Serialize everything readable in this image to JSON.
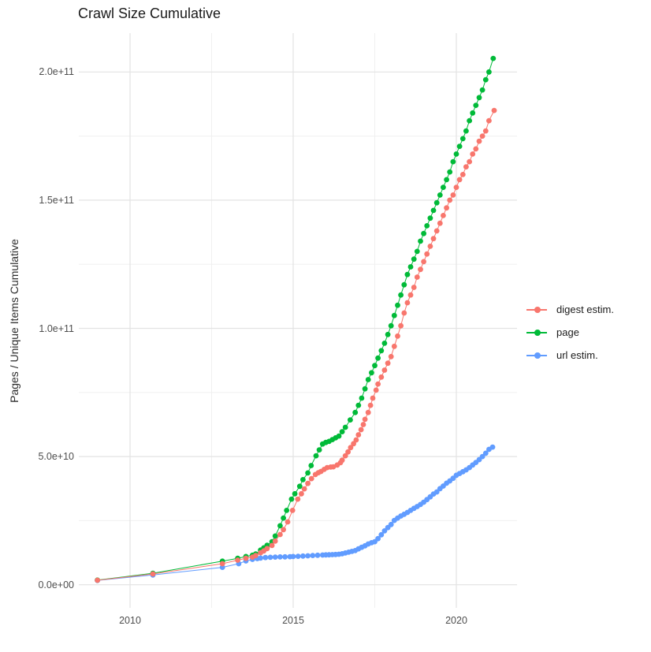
{
  "chart": {
    "title": "Crawl Size Cumulative",
    "ylabel": "Pages / Unique Items Cumulative",
    "xlabel": ""
  },
  "legend": {
    "position": "right",
    "items": [
      {
        "label": "digest estim.",
        "color": "#F8766D"
      },
      {
        "label": "page",
        "color": "#00BA38"
      },
      {
        "label": "url estim.",
        "color": "#619CFF"
      }
    ]
  },
  "chart_data": {
    "type": "scatter",
    "subtype": "line-with-points",
    "title": "Crawl Size Cumulative",
    "xlabel": "",
    "ylabel": "Pages / Unique Items Cumulative",
    "x_unit": "year (decimal)",
    "value_scale_note": "values below are in units of 1e9 pages / unique items",
    "xlim": [
      2008.4,
      2021.8
    ],
    "ylim_e9": [
      -9,
      215
    ],
    "grid": true,
    "legend_position": "right",
    "x_ticks": [
      {
        "value": 2010,
        "label": "2010"
      },
      {
        "value": 2015,
        "label": "2015"
      },
      {
        "value": 2020,
        "label": "2020"
      }
    ],
    "x_minor": [
      2012.5,
      2017.5
    ],
    "y_ticks": [
      {
        "value_e9": 0,
        "label": "0.0e+00"
      },
      {
        "value_e9": 50,
        "label": "5.0e+10"
      },
      {
        "value_e9": 100,
        "label": "1.0e+11"
      },
      {
        "value_e9": 150,
        "label": "1.5e+11"
      },
      {
        "value_e9": 200,
        "label": "2.0e+11"
      }
    ],
    "y_minor_e9": [
      25,
      75,
      125,
      175
    ],
    "draw_order": [
      2,
      1,
      0
    ],
    "series": [
      {
        "name": "digest estim.",
        "color": "#F8766D",
        "points": [
          [
            2009.0,
            1.75
          ],
          [
            2010.7,
            4.2
          ],
          [
            2012.83,
            8.2
          ],
          [
            2013.3,
            9.6
          ],
          [
            2013.55,
            10.3
          ],
          [
            2013.75,
            10.8
          ],
          [
            2013.85,
            11.4
          ],
          [
            2014.0,
            12.5
          ],
          [
            2014.1,
            13.2
          ],
          [
            2014.2,
            14.1
          ],
          [
            2014.35,
            15.3
          ],
          [
            2014.45,
            17.0
          ],
          [
            2014.6,
            19.6
          ],
          [
            2014.7,
            21.5
          ],
          [
            2014.83,
            24.5
          ],
          [
            2014.98,
            29.0
          ],
          [
            2015.14,
            33.4
          ],
          [
            2015.25,
            35.5
          ],
          [
            2015.34,
            37.4
          ],
          [
            2015.45,
            39.5
          ],
          [
            2015.56,
            41.4
          ],
          [
            2015.68,
            43.0
          ],
          [
            2015.77,
            43.7
          ],
          [
            2015.85,
            44.2
          ],
          [
            2015.95,
            45.0
          ],
          [
            2016.04,
            45.7
          ],
          [
            2016.15,
            45.9
          ],
          [
            2016.23,
            46.0
          ],
          [
            2016.35,
            46.7
          ],
          [
            2016.45,
            47.6
          ],
          [
            2016.5,
            48.6
          ],
          [
            2016.6,
            50.3
          ],
          [
            2016.68,
            51.8
          ],
          [
            2016.76,
            53.5
          ],
          [
            2016.85,
            55.0
          ],
          [
            2016.93,
            56.5
          ],
          [
            2017.0,
            58.5
          ],
          [
            2017.08,
            60.5
          ],
          [
            2017.15,
            62.5
          ],
          [
            2017.2,
            64.5
          ],
          [
            2017.3,
            67.2
          ],
          [
            2017.37,
            70.0
          ],
          [
            2017.44,
            72.8
          ],
          [
            2017.54,
            75.9
          ],
          [
            2017.6,
            78.3
          ],
          [
            2017.7,
            81.0
          ],
          [
            2017.8,
            83.7
          ],
          [
            2017.9,
            86.4
          ],
          [
            2018.0,
            89.0
          ],
          [
            2018.1,
            93.0
          ],
          [
            2018.2,
            97.0
          ],
          [
            2018.3,
            101
          ],
          [
            2018.4,
            106
          ],
          [
            2018.5,
            110
          ],
          [
            2018.6,
            113
          ],
          [
            2018.7,
            116
          ],
          [
            2018.8,
            120
          ],
          [
            2018.9,
            123
          ],
          [
            2019.0,
            126
          ],
          [
            2019.1,
            129
          ],
          [
            2019.2,
            132
          ],
          [
            2019.3,
            135
          ],
          [
            2019.4,
            138
          ],
          [
            2019.5,
            141
          ],
          [
            2019.6,
            144
          ],
          [
            2019.7,
            147
          ],
          [
            2019.8,
            150
          ],
          [
            2019.9,
            152
          ],
          [
            2020.0,
            155
          ],
          [
            2020.1,
            158
          ],
          [
            2020.2,
            160
          ],
          [
            2020.3,
            163
          ],
          [
            2020.4,
            165
          ],
          [
            2020.5,
            168
          ],
          [
            2020.6,
            170
          ],
          [
            2020.7,
            173
          ],
          [
            2020.8,
            175
          ],
          [
            2020.9,
            177
          ],
          [
            2021.0,
            181
          ],
          [
            2021.16,
            185
          ]
        ]
      },
      {
        "name": "page",
        "color": "#00BA38",
        "points": [
          [
            2009.0,
            1.8
          ],
          [
            2010.7,
            4.5
          ],
          [
            2012.83,
            9.2
          ],
          [
            2013.3,
            10.3
          ],
          [
            2013.55,
            11.0
          ],
          [
            2013.75,
            11.5
          ],
          [
            2013.85,
            12.0
          ],
          [
            2014.0,
            13.5
          ],
          [
            2014.1,
            14.4
          ],
          [
            2014.2,
            15.4
          ],
          [
            2014.35,
            16.8
          ],
          [
            2014.45,
            19.0
          ],
          [
            2014.6,
            23.0
          ],
          [
            2014.7,
            26.0
          ],
          [
            2014.8,
            29.0
          ],
          [
            2014.95,
            33.4
          ],
          [
            2015.05,
            35.5
          ],
          [
            2015.2,
            38.4
          ],
          [
            2015.3,
            41.0
          ],
          [
            2015.45,
            43.6
          ],
          [
            2015.55,
            46.5
          ],
          [
            2015.7,
            50.3
          ],
          [
            2015.8,
            52.6
          ],
          [
            2015.9,
            54.9
          ],
          [
            2016.0,
            55.5
          ],
          [
            2016.1,
            55.9
          ],
          [
            2016.2,
            56.6
          ],
          [
            2016.3,
            57.3
          ],
          [
            2016.4,
            58.0
          ],
          [
            2016.5,
            59.7
          ],
          [
            2016.6,
            61.4
          ],
          [
            2016.75,
            64.3
          ],
          [
            2016.9,
            67.2
          ],
          [
            2017.0,
            70.0
          ],
          [
            2017.1,
            72.8
          ],
          [
            2017.2,
            76.4
          ],
          [
            2017.3,
            80.0
          ],
          [
            2017.4,
            82.7
          ],
          [
            2017.5,
            85.5
          ],
          [
            2017.6,
            88.4
          ],
          [
            2017.7,
            91.3
          ],
          [
            2017.8,
            94.2
          ],
          [
            2017.9,
            97.6
          ],
          [
            2018.0,
            101
          ],
          [
            2018.1,
            105
          ],
          [
            2018.2,
            109
          ],
          [
            2018.3,
            113
          ],
          [
            2018.4,
            117
          ],
          [
            2018.5,
            121
          ],
          [
            2018.6,
            124
          ],
          [
            2018.7,
            127
          ],
          [
            2018.8,
            130
          ],
          [
            2018.9,
            134
          ],
          [
            2019.0,
            137
          ],
          [
            2019.1,
            140
          ],
          [
            2019.2,
            143
          ],
          [
            2019.3,
            146
          ],
          [
            2019.4,
            149
          ],
          [
            2019.5,
            152
          ],
          [
            2019.6,
            155
          ],
          [
            2019.7,
            158
          ],
          [
            2019.8,
            161
          ],
          [
            2019.9,
            165
          ],
          [
            2020.0,
            168
          ],
          [
            2020.1,
            171
          ],
          [
            2020.2,
            174
          ],
          [
            2020.3,
            177
          ],
          [
            2020.4,
            181
          ],
          [
            2020.5,
            184
          ],
          [
            2020.6,
            187
          ],
          [
            2020.7,
            190
          ],
          [
            2020.8,
            193
          ],
          [
            2020.9,
            197
          ],
          [
            2021.0,
            200
          ],
          [
            2021.13,
            205.3
          ]
        ]
      },
      {
        "name": "url estim.",
        "color": "#619CFF",
        "points": [
          [
            2009.0,
            1.7
          ],
          [
            2010.7,
            3.8
          ],
          [
            2012.83,
            6.8
          ],
          [
            2013.33,
            8.2
          ],
          [
            2013.55,
            9.3
          ],
          [
            2013.75,
            9.9
          ],
          [
            2013.9,
            10.2
          ],
          [
            2014.0,
            10.4
          ],
          [
            2014.15,
            10.6
          ],
          [
            2014.3,
            10.7
          ],
          [
            2014.45,
            10.8
          ],
          [
            2014.6,
            10.85
          ],
          [
            2014.75,
            10.9
          ],
          [
            2014.9,
            10.95
          ],
          [
            2015.0,
            11.0
          ],
          [
            2015.15,
            11.1
          ],
          [
            2015.3,
            11.2
          ],
          [
            2015.45,
            11.3
          ],
          [
            2015.6,
            11.4
          ],
          [
            2015.75,
            11.5
          ],
          [
            2015.9,
            11.6
          ],
          [
            2016.0,
            11.65
          ],
          [
            2016.1,
            11.7
          ],
          [
            2016.2,
            11.75
          ],
          [
            2016.3,
            11.8
          ],
          [
            2016.4,
            11.9
          ],
          [
            2016.5,
            12.1
          ],
          [
            2016.6,
            12.4
          ],
          [
            2016.7,
            12.7
          ],
          [
            2016.8,
            13.0
          ],
          [
            2016.9,
            13.3
          ],
          [
            2017.0,
            14.0
          ],
          [
            2017.1,
            14.6
          ],
          [
            2017.2,
            15.2
          ],
          [
            2017.3,
            15.9
          ],
          [
            2017.4,
            16.4
          ],
          [
            2017.5,
            16.8
          ],
          [
            2017.6,
            18.0
          ],
          [
            2017.7,
            19.5
          ],
          [
            2017.8,
            21.0
          ],
          [
            2017.9,
            22.3
          ],
          [
            2018.0,
            23.5
          ],
          [
            2018.1,
            25.1
          ],
          [
            2018.2,
            26.0
          ],
          [
            2018.3,
            26.8
          ],
          [
            2018.4,
            27.5
          ],
          [
            2018.5,
            28.2
          ],
          [
            2018.6,
            29.0
          ],
          [
            2018.7,
            29.8
          ],
          [
            2018.8,
            30.5
          ],
          [
            2018.9,
            31.3
          ],
          [
            2019.0,
            32.2
          ],
          [
            2019.1,
            33.2
          ],
          [
            2019.2,
            34.3
          ],
          [
            2019.3,
            35.4
          ],
          [
            2019.4,
            36.2
          ],
          [
            2019.5,
            37.5
          ],
          [
            2019.6,
            38.5
          ],
          [
            2019.7,
            39.6
          ],
          [
            2019.8,
            40.5
          ],
          [
            2019.9,
            41.5
          ],
          [
            2020.0,
            42.7
          ],
          [
            2020.1,
            43.4
          ],
          [
            2020.2,
            44.1
          ],
          [
            2020.3,
            44.8
          ],
          [
            2020.4,
            45.7
          ],
          [
            2020.5,
            46.7
          ],
          [
            2020.6,
            47.7
          ],
          [
            2020.7,
            48.8
          ],
          [
            2020.8,
            50.0
          ],
          [
            2020.9,
            51.3
          ],
          [
            2021.0,
            52.8
          ],
          [
            2021.11,
            53.7
          ]
        ]
      }
    ],
    "style": {
      "point_radius": 3.4,
      "line_width": 1,
      "grid_major_color": "#e3e3e3",
      "grid_minor_color": "#f0f0f0",
      "background": "#ffffff",
      "tick_label_color": "#4d4d4d",
      "title_color": "#1a1a1a"
    }
  }
}
